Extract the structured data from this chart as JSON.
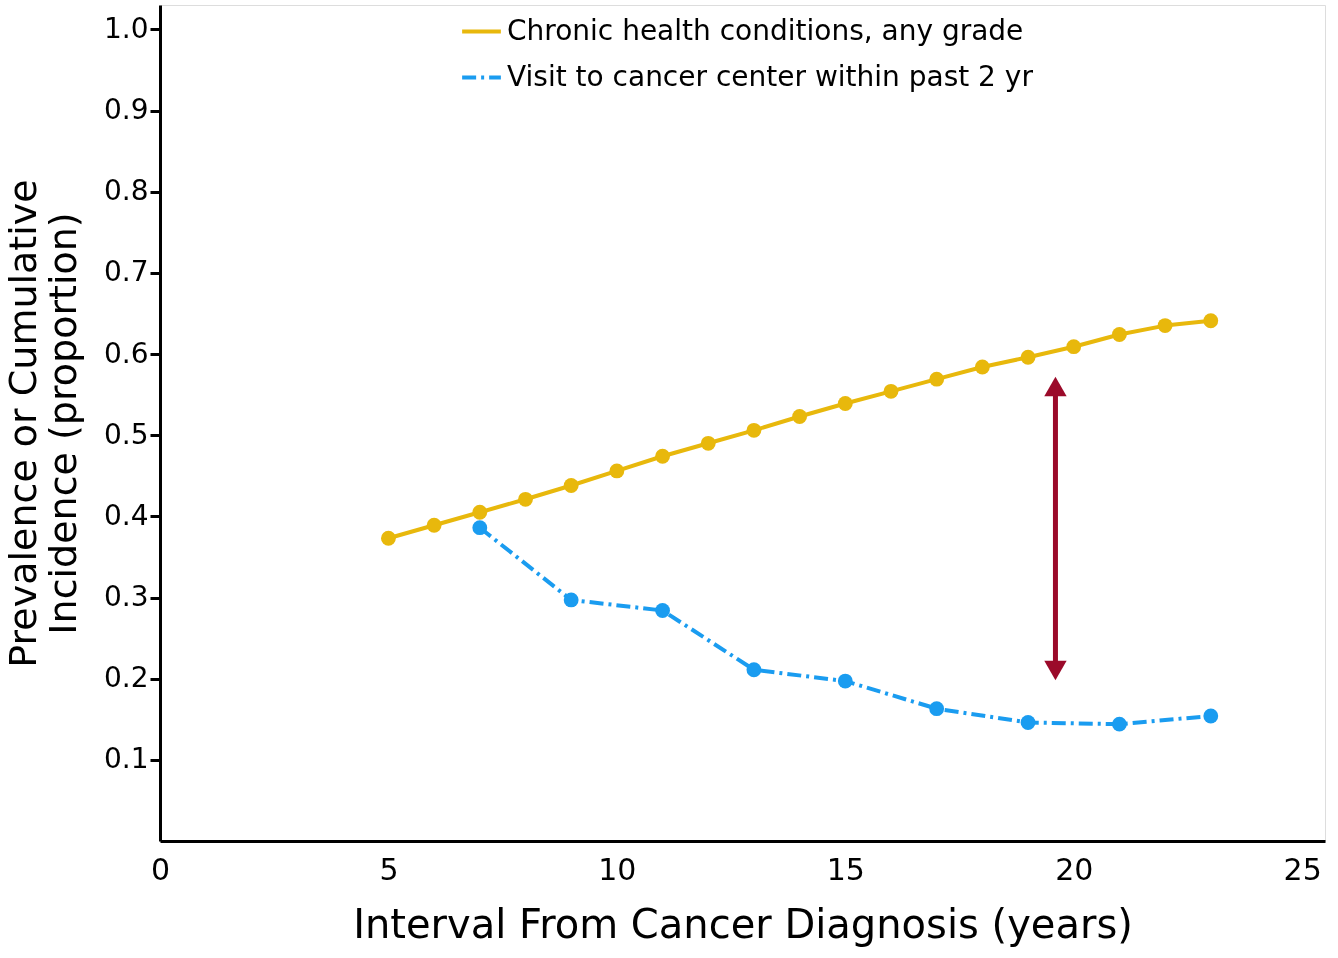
{
  "chart_data": {
    "type": "line",
    "xlabel": "Interval From Cancer Diagnosis (years)",
    "ylabel": "Prevalence or Cumulative\nIncidence (proportion)",
    "xlim": [
      0,
      25.5
    ],
    "xticks": [
      0,
      5,
      10,
      15,
      20,
      25
    ],
    "ylim": [
      0,
      1.03
    ],
    "yticks": [
      {
        "value": 0.1,
        "label": "0.1"
      },
      {
        "value": 0.2,
        "label": "0.2"
      },
      {
        "value": 0.3,
        "label": "0.3"
      },
      {
        "value": 0.4,
        "label": "0.4"
      },
      {
        "value": 0.5,
        "label": "0.5"
      },
      {
        "value": 0.6,
        "label": "0.6"
      },
      {
        "value": 0.7,
        "label": "0.7"
      },
      {
        "value": 0.8,
        "label": "0.8"
      },
      {
        "value": 0.9,
        "label": "0.9"
      },
      {
        "value": 1.0,
        "label": "1.0"
      }
    ],
    "grid": false,
    "legend": "top",
    "marker": "circle",
    "series": [
      {
        "name": "Chronic health conditions, any grade",
        "color": "#e8b80c",
        "line_style": "solid",
        "x": [
          5,
          6,
          7,
          8,
          9,
          10,
          11,
          12,
          13,
          14,
          15,
          16,
          17,
          18,
          19,
          20,
          21,
          22,
          23
        ],
        "values": [
          0.373,
          0.389,
          0.405,
          0.421,
          0.438,
          0.456,
          0.474,
          0.49,
          0.506,
          0.523,
          0.539,
          0.554,
          0.569,
          0.584,
          0.596,
          0.609,
          0.624,
          0.635,
          0.641
        ]
      },
      {
        "name": "Visit to cancer center within past 2 yr",
        "color": "#1a9cf0",
        "line_style": "dashed",
        "x": [
          7,
          9,
          11,
          13,
          15,
          17,
          19,
          21,
          23
        ],
        "values": [
          0.386,
          0.297,
          0.284,
          0.211,
          0.197,
          0.163,
          0.146,
          0.144,
          0.154
        ]
      }
    ]
  }
}
